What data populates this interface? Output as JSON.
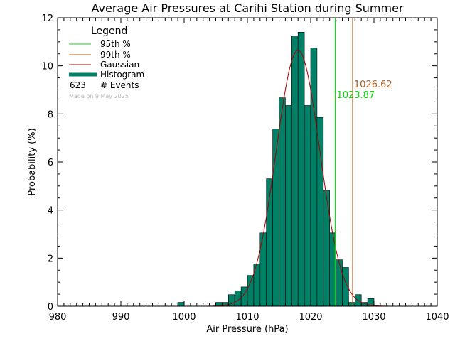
{
  "chart_data": {
    "type": "bar",
    "title": "Average Air Pressures at Carihi Station during Summer",
    "xlabel": "Air Pressure (hPa)",
    "ylabel": "Probability (%)",
    "xlim": [
      980,
      1040
    ],
    "ylim": [
      0,
      12
    ],
    "xticks": [
      980,
      990,
      1000,
      1010,
      1020,
      1030,
      1040
    ],
    "yticks": [
      0,
      2,
      4,
      6,
      8,
      10,
      12
    ],
    "bin_width": 1,
    "bins": [
      {
        "x": 999.5,
        "y": 0.16
      },
      {
        "x": 1005.5,
        "y": 0.16
      },
      {
        "x": 1006.5,
        "y": 0.16
      },
      {
        "x": 1007.5,
        "y": 0.48
      },
      {
        "x": 1008.5,
        "y": 0.64
      },
      {
        "x": 1009.5,
        "y": 0.8
      },
      {
        "x": 1010.5,
        "y": 1.28
      },
      {
        "x": 1011.5,
        "y": 1.76
      },
      {
        "x": 1012.5,
        "y": 3.05
      },
      {
        "x": 1013.5,
        "y": 5.3
      },
      {
        "x": 1014.5,
        "y": 7.38
      },
      {
        "x": 1015.5,
        "y": 8.67
      },
      {
        "x": 1016.5,
        "y": 8.35
      },
      {
        "x": 1017.5,
        "y": 11.24
      },
      {
        "x": 1018.5,
        "y": 11.4
      },
      {
        "x": 1019.5,
        "y": 8.35
      },
      {
        "x": 1020.5,
        "y": 10.75
      },
      {
        "x": 1021.5,
        "y": 7.86
      },
      {
        "x": 1022.5,
        "y": 4.82
      },
      {
        "x": 1023.5,
        "y": 3.05
      },
      {
        "x": 1024.5,
        "y": 1.93
      },
      {
        "x": 1025.5,
        "y": 1.61
      },
      {
        "x": 1026.5,
        "y": 0.16
      },
      {
        "x": 1027.5,
        "y": 0.48
      },
      {
        "x": 1028.5,
        "y": 0.16
      },
      {
        "x": 1029.5,
        "y": 0.32
      }
    ],
    "gaussian": {
      "mean": 1018.0,
      "sd": 3.45,
      "peak": 10.65
    },
    "percentile_lines": [
      {
        "name": "95th %",
        "value": 1023.87,
        "label": "1023.87",
        "color": "#00dd00"
      },
      {
        "name": "99th %",
        "value": 1026.62,
        "label": "1026.62",
        "color": "#b06020"
      }
    ],
    "legend": {
      "title": "Legend",
      "placement": "top-left",
      "items": [
        {
          "label": "95th %",
          "color": "#00dd00",
          "kind": "line"
        },
        {
          "label": "99th %",
          "color": "#b06020",
          "kind": "line"
        },
        {
          "label": "Gaussian",
          "color": "#aa0000",
          "kind": "line"
        },
        {
          "label": "Histogram",
          "color": "#008066",
          "kind": "thick"
        }
      ],
      "events_count": "623",
      "events_label": "# Events",
      "made_on": "Made on 9 May 2025"
    },
    "colors": {
      "histogram_fill": "#008066",
      "histogram_edge": "#000000",
      "gaussian": "#aa0000",
      "p95": "#00dd00",
      "p99": "#b06020",
      "made_on": "#bbbbbb"
    }
  }
}
